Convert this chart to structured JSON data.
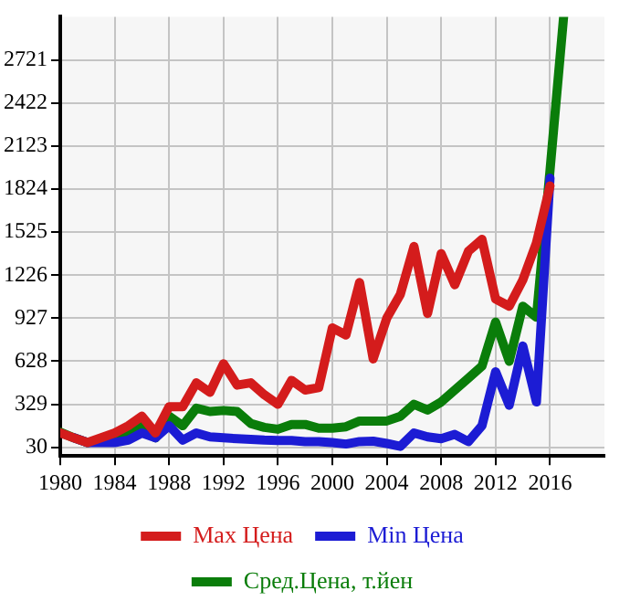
{
  "chart_data": {
    "type": "line",
    "x": [
      1980,
      1981,
      1982,
      1983,
      1984,
      1985,
      1986,
      1987,
      1988,
      1989,
      1990,
      1991,
      1992,
      1993,
      1994,
      1995,
      1996,
      1997,
      1998,
      1999,
      2000,
      2001,
      2002,
      2003,
      2004,
      2005,
      2006,
      2007,
      2008,
      2009,
      2010,
      2011,
      2012,
      2013,
      2014,
      2015,
      2016,
      2017
    ],
    "series": [
      {
        "name": "Max Цена",
        "color": "#d41c1c",
        "values": [
          130,
          96,
          63,
          96,
          130,
          180,
          246,
          130,
          312,
          312,
          478,
          412,
          611,
          462,
          478,
          395,
          329,
          495,
          428,
          445,
          860,
          810,
          1175,
          644,
          927,
          1093,
          1425,
          960,
          1375,
          1159,
          1392,
          1474,
          1060,
          1010,
          1192,
          1450,
          1845,
          null
        ]
      },
      {
        "name": "Min Цена",
        "color": "#1c1cd4",
        "values": [
          null,
          96,
          63,
          63,
          63,
          80,
          130,
          96,
          180,
          80,
          130,
          103,
          96,
          90,
          86,
          80,
          77,
          77,
          70,
          70,
          63,
          53,
          70,
          73,
          57,
          37,
          130,
          103,
          90,
          120,
          70,
          180,
          555,
          322,
          734,
          345,
          1900,
          null
        ]
      },
      {
        "name": "Сред.Цена, т.йен",
        "color": "#0a7d0a",
        "values": [
          136,
          96,
          63,
          80,
          96,
          130,
          180,
          96,
          246,
          180,
          302,
          279,
          286,
          279,
          196,
          169,
          156,
          189,
          189,
          163,
          163,
          173,
          213,
          213,
          213,
          246,
          329,
          289,
          345,
          428,
          511,
          595,
          900,
          628,
          1010,
          934,
          1954,
          3020
        ]
      }
    ],
    "xlim": [
      1980,
      2020
    ],
    "xticks": [
      1980,
      1984,
      1988,
      1992,
      1996,
      2000,
      2004,
      2008,
      2012,
      2016
    ],
    "ylim": [
      -30,
      3020
    ],
    "yticks": [
      30,
      329,
      628,
      927,
      1226,
      1525,
      1824,
      2123,
      2422,
      2721
    ],
    "grid": true,
    "legend": "bottom",
    "marker": "none",
    "line_style": "solid"
  }
}
